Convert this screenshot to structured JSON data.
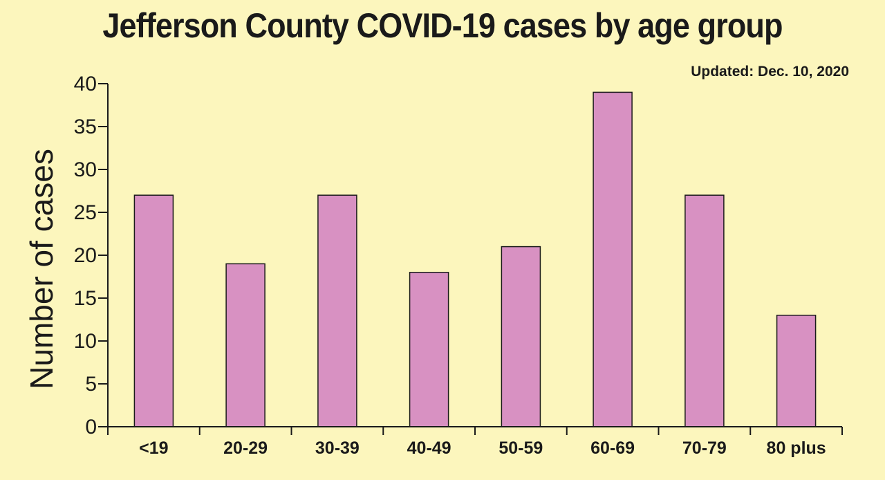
{
  "colors": {
    "background": "#fcf6bd",
    "bar_fill": "#d891c2",
    "bar_stroke": "#1a1a1a",
    "axis": "#1a1a1a"
  },
  "chart_data": {
    "type": "bar",
    "title": "Jefferson County COVID-19 cases by age group",
    "subtitle": "Updated: Dec. 10, 2020",
    "xlabel": "",
    "ylabel": "Number of cases",
    "categories": [
      "<19",
      "20-29",
      "30-39",
      "40-49",
      "50-59",
      "60-69",
      "70-79",
      "80 plus"
    ],
    "values": [
      27,
      19,
      27,
      18,
      21,
      39,
      27,
      13
    ],
    "ylim": [
      0,
      40
    ],
    "yticks": [
      0,
      5,
      10,
      15,
      20,
      25,
      30,
      35,
      40
    ],
    "grid": false,
    "legend": "none"
  }
}
